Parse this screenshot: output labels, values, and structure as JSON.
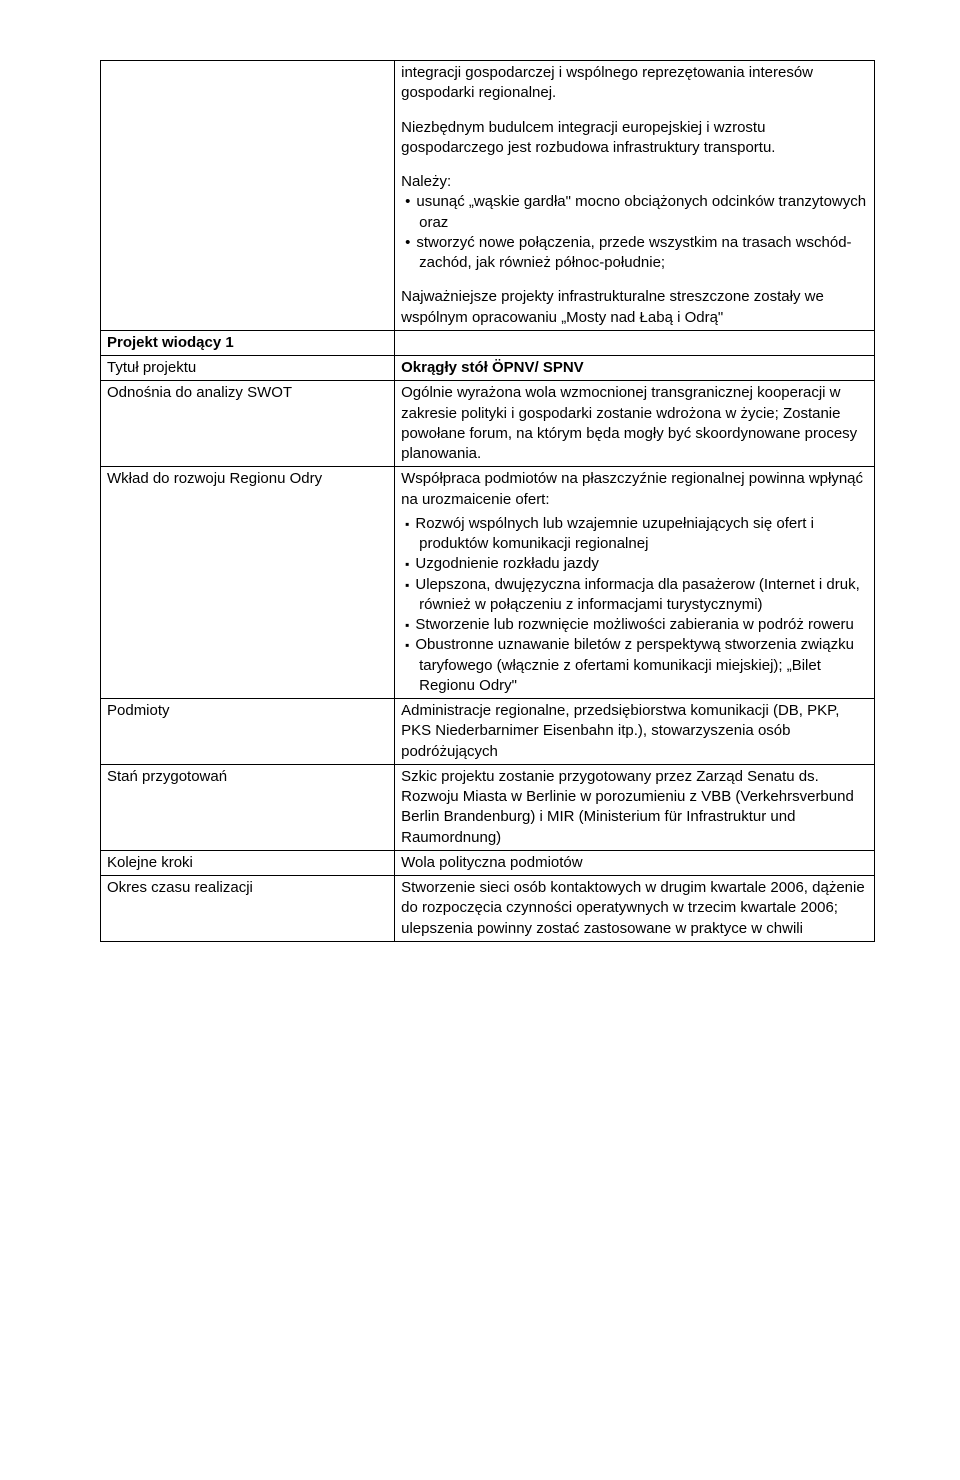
{
  "top": {
    "p1": "integracji gospodarczej i wspólnego reprezętowania interesów gospodarki regionalnej.",
    "p2": "Niezbędnym budulcem integracji europejskiej i wzrostu gospodarczego jest rozbudowa infrastruktury transportu.",
    "p3_lead": "Należy:",
    "p3_items": [
      "usunąć „wąskie gardła\" mocno obciążonych odcinków tranzytowych oraz",
      "stworzyć nowe połączenia, przede wszystkim na trasach wschód-zachód, jak również północ-południe;"
    ],
    "p4": "Najważniejsze projekty infrastrukturalne streszczone zostały we wspólnym opracowaniu „Mosty nad Łabą i Odrą\""
  },
  "row_project_header": {
    "left": "Projekt wiodący 1"
  },
  "row_title": {
    "left": "Tytuł projektu",
    "right": "Okrągły stół ÖPNV/ SPNV"
  },
  "row_swot": {
    "left": "Odnośnia do analizy SWOT",
    "right": "Ogólnie wyrażona wola wzmocnionej transgranicznej kooperacji w zakresie polityki i gospodarki zostanie wdrożona w życie; Zostanie powołane forum, na którym będa mogły być skoordynowane procesy planowania."
  },
  "row_wklad": {
    "left": "Wkład do rozwoju Regionu Odry",
    "right_lead": "Współpraca podmiotów na płaszczyźnie regionalnej powinna wpłynąć na urozmaicenie ofert:",
    "right_items": [
      "Rozwój wspólnych lub wzajemnie uzupełniających się ofert i produktów komunikacji regionalnej",
      "Uzgodnienie rozkładu jazdy",
      "Ulepszona, dwujęzyczna informacja dla pasażerow (Internet i druk, również w połączeniu z informacjami turystycznymi)",
      "Stworzenie lub rozwnięcie możliwości zabierania w podróż roweru",
      "Obustronne uznawanie biletów z perspektywą stworzenia związku taryfowego (włącznie z ofertami komunikacji miejskiej); „Bilet Regionu Odry\""
    ]
  },
  "row_podmioty": {
    "left": "Podmioty",
    "right": "Administracje regionalne, przedsiębiorstwa komunikacji (DB, PKP, PKS Niederbarnimer Eisenbahn itp.), stowarzyszenia osób podróżujących"
  },
  "row_stan": {
    "left": "Stań przygotowań",
    "right": "Szkic projektu zostanie przygotowany przez Zarząd Senatu ds. Rozwoju Miasta w Berlinie w porozumieniu z VBB (Verkehrsverbund Berlin Brandenburg) i MIR (Ministerium für Infrastruktur und Raumordnung)"
  },
  "row_kroki": {
    "left": "Kolejne kroki",
    "right": "Wola polityczna podmiotów"
  },
  "row_okres": {
    "left": "Okres czasu realizacji",
    "right": "Stworzenie sieci osób kontaktowych w drugim kwartale 2006, dążenie do rozpoczęcia czynności operatywnych w trzecim kwartale 2006; ulepszenia powinny zostać zastosowane w praktyce w chwili"
  }
}
